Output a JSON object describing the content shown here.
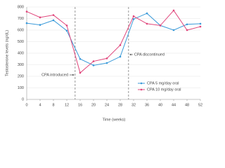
{
  "chart_data": {
    "type": "line",
    "x_label": "Time (weeks)",
    "y_label": "Testosterone levels (ng/dL)",
    "x": [
      0,
      4,
      8,
      12,
      16,
      20,
      24,
      28,
      32,
      36,
      40,
      44,
      48,
      52
    ],
    "series": [
      {
        "name": "CPA 5 mg/day oral",
        "color": "#3a9ad9",
        "values": [
          660,
          645,
          685,
          595,
          350,
          295,
          315,
          370,
          695,
          745,
          640,
          600,
          650,
          655
        ]
      },
      {
        "name": "CPA 10 mg/day oral",
        "color": "#e0457b",
        "values": [
          760,
          710,
          730,
          640,
          230,
          330,
          355,
          470,
          720,
          655,
          640,
          770,
          600,
          630
        ]
      }
    ],
    "xlim": [
      0,
      52
    ],
    "xticks": [
      0,
      4,
      8,
      12,
      16,
      20,
      24,
      28,
      32,
      36,
      40,
      44,
      48,
      52
    ],
    "ylim": [
      0,
      800
    ],
    "yticks": [
      0,
      100,
      200,
      300,
      400,
      500,
      600,
      700,
      800
    ],
    "grid": true,
    "vlines": [
      14.5,
      30.5
    ],
    "annotations": [
      "CPA introduced",
      "CPA discontinued"
    ],
    "legend": "lower right"
  }
}
